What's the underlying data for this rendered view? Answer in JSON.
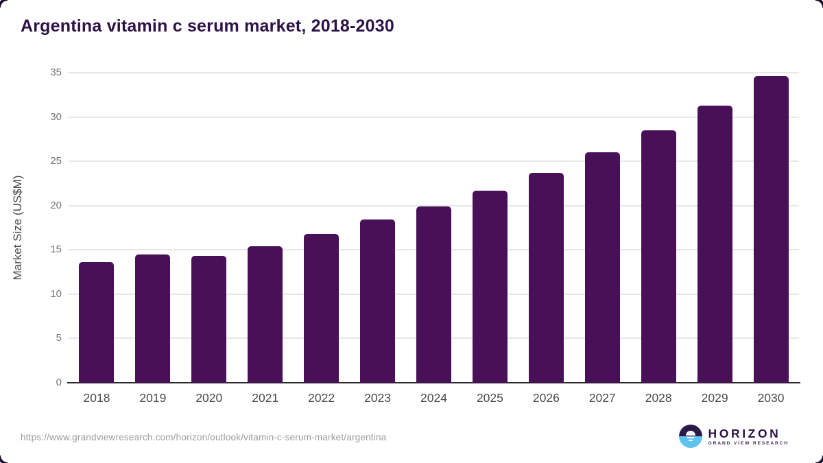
{
  "page": {
    "title": "Argentina vitamin c serum market, 2018-2030",
    "source_url": "https://www.grandviewresearch.com/horizon/outlook/vitamin-c-serum-market/argentina"
  },
  "logo": {
    "brand": "HORIZON",
    "subtitle": "GRAND VIEW RESEARCH",
    "icon": "sunset-over-water-icon",
    "icon_top_color": "#2b1a47",
    "icon_bottom_color": "#5fc3ef"
  },
  "chart_data": {
    "type": "bar",
    "title": "Argentina vitamin c serum market, 2018-2030",
    "categories": [
      "2018",
      "2019",
      "2020",
      "2021",
      "2022",
      "2023",
      "2024",
      "2025",
      "2026",
      "2027",
      "2028",
      "2029",
      "2030"
    ],
    "values": [
      13.6,
      14.5,
      14.3,
      15.4,
      16.8,
      18.4,
      19.9,
      21.7,
      23.7,
      26.0,
      28.5,
      31.3,
      34.6
    ],
    "xlabel": "",
    "ylabel": "Market Size (US$M)",
    "ylim": [
      0,
      35
    ],
    "yticks": [
      0,
      5,
      10,
      15,
      20,
      25,
      30,
      35
    ],
    "grid": true,
    "legend_position": "none",
    "bar_color": "#481057"
  },
  "colors": {
    "background": "#ffffff",
    "title_text": "#2e1147",
    "tick_label": "#757575",
    "axis_label": "#4a4a4a",
    "gridline": "#e7e7e7",
    "axis_line": "#2b2b2b",
    "url_text": "#9b9b9b"
  }
}
